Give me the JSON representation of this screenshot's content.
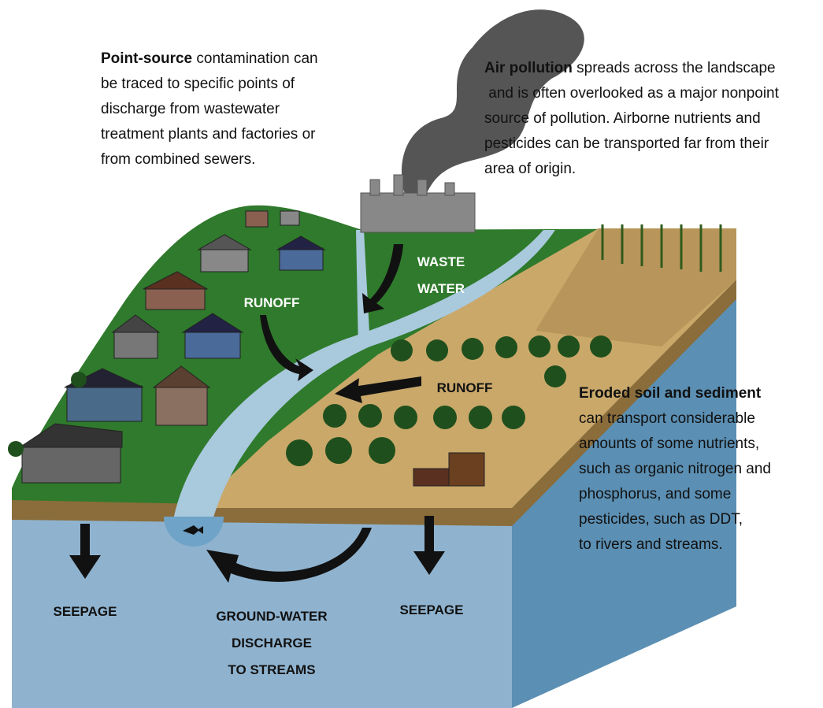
{
  "notes": [
    {
      "lead": "Point-source",
      "lines": [
        " contamination can",
        "be traced to specific points of",
        "discharge from wastewater",
        "treatment plants and factories or",
        "from combined sewers."
      ]
    },
    {
      "lead": "Air pollution",
      "lines": [
        " spreads across the landscape",
        " and is often overlooked as a major nonpoint",
        "source of pollution. Airborne nutrients and",
        "pesticides can be transported far from their",
        "area of origin."
      ]
    },
    {
      "lead": "Eroded soil and sediment",
      "lines": [
        "can transport considerable",
        "amounts of some nutrients,",
        "such as organic nitrogen and",
        "phosphorus, and some",
        "pesticides, such as DDT,",
        "to rivers and streams."
      ]
    }
  ],
  "labels": [
    {
      "lines": [
        "WASTE",
        "WATER"
      ]
    },
    {
      "lines": [
        "RUNOFF"
      ]
    },
    {
      "lines": [
        "RUNOFF"
      ]
    },
    {
      "lines": [
        "SEEPAGE"
      ]
    },
    {
      "lines": [
        "SEEPAGE"
      ]
    },
    {
      "lines": [
        "GROUND-WATER",
        "DISCHARGE",
        "TO STREAMS"
      ]
    }
  ]
}
